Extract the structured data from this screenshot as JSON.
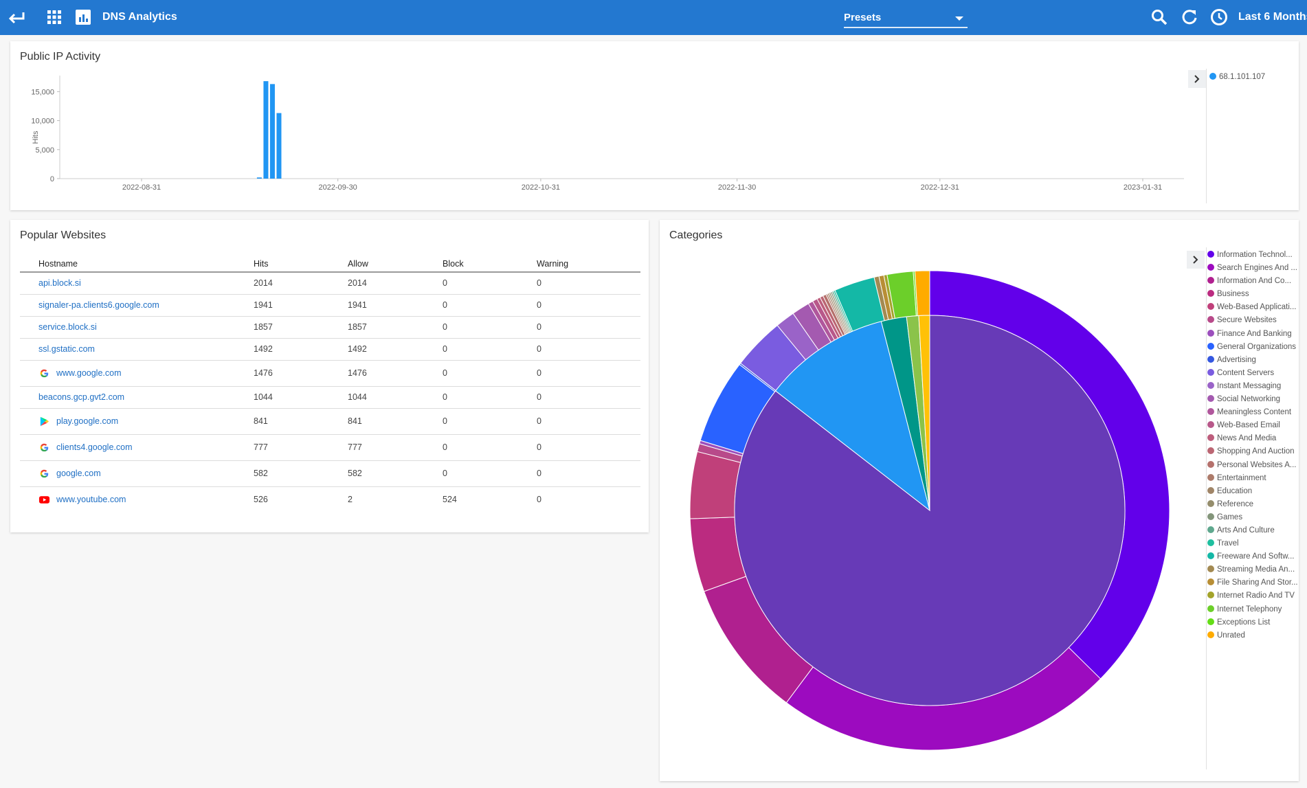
{
  "topbar": {
    "title": "DNS Analytics",
    "presets_label": "Presets",
    "range_label": "Last 6 Months"
  },
  "activity": {
    "title": "Public IP Activity",
    "legend": [
      {
        "label": "68.1.101.107",
        "color": "#2196f3"
      }
    ]
  },
  "popular": {
    "title": "Popular Websites",
    "columns": [
      "Hostname",
      "Hits",
      "Allow",
      "Block",
      "Warning"
    ],
    "rows": [
      {
        "host": "api.block.si",
        "hits": "2014",
        "allow": "2014",
        "block": "0",
        "warning": "0",
        "icon": "none"
      },
      {
        "host": "signaler-pa.clients6.google.com",
        "hits": "1941",
        "allow": "1941",
        "block": "0",
        "warning": "0",
        "icon": "none"
      },
      {
        "host": "service.block.si",
        "hits": "1857",
        "allow": "1857",
        "block": "0",
        "warning": "0",
        "icon": "none"
      },
      {
        "host": "ssl.gstatic.com",
        "hits": "1492",
        "allow": "1492",
        "block": "0",
        "warning": "0",
        "icon": "none"
      },
      {
        "host": "www.google.com",
        "hits": "1476",
        "allow": "1476",
        "block": "0",
        "warning": "0",
        "icon": "google-icon"
      },
      {
        "host": "beacons.gcp.gvt2.com",
        "hits": "1044",
        "allow": "1044",
        "block": "0",
        "warning": "0",
        "icon": "none"
      },
      {
        "host": "play.google.com",
        "hits": "841",
        "allow": "841",
        "block": "0",
        "warning": "0",
        "icon": "google-play-icon"
      },
      {
        "host": "clients4.google.com",
        "hits": "777",
        "allow": "777",
        "block": "0",
        "warning": "0",
        "icon": "google-icon"
      },
      {
        "host": "google.com",
        "hits": "582",
        "allow": "582",
        "block": "0",
        "warning": "0",
        "icon": "google-icon"
      },
      {
        "host": "www.youtube.com",
        "hits": "526",
        "allow": "2",
        "block": "524",
        "warning": "0",
        "icon": "youtube-icon"
      }
    ]
  },
  "categories": {
    "title": "Categories",
    "legend": [
      {
        "label": "Information Technol...",
        "color": "#6200ea"
      },
      {
        "label": "Search Engines And ...",
        "color": "#9c0bbf"
      },
      {
        "label": "Information And Co...",
        "color": "#b0208f"
      },
      {
        "label": "Business",
        "color": "#bb2b80"
      },
      {
        "label": "Web-Based Applicati...",
        "color": "#c0407a"
      },
      {
        "label": "Secure Websites",
        "color": "#b84a8a"
      },
      {
        "label": "Finance And Banking",
        "color": "#9c4fbd"
      },
      {
        "label": "General Organizations",
        "color": "#2962ff"
      },
      {
        "label": "Advertising",
        "color": "#3558e0"
      },
      {
        "label": "Content Servers",
        "color": "#7a5ce0"
      },
      {
        "label": "Instant Messaging",
        "color": "#9a63c8"
      },
      {
        "label": "Social Networking",
        "color": "#a45ab0"
      },
      {
        "label": "Meaningless Content",
        "color": "#b0579c"
      },
      {
        "label": "Web-Based Email",
        "color": "#b8588a"
      },
      {
        "label": "News And Media",
        "color": "#bd5d7c"
      },
      {
        "label": "Shopping And Auction",
        "color": "#bb6673"
      },
      {
        "label": "Personal Websites A...",
        "color": "#b5716c"
      },
      {
        "label": "Entertainment",
        "color": "#ad7b6a"
      },
      {
        "label": "Education",
        "color": "#a08567"
      },
      {
        "label": "Reference",
        "color": "#958d6c"
      },
      {
        "label": "Games",
        "color": "#83957a"
      },
      {
        "label": "Arts And Culture",
        "color": "#5fa88e"
      },
      {
        "label": "Travel",
        "color": "#1fbf9f"
      },
      {
        "label": "Freeware And Softw...",
        "color": "#14b8a6"
      },
      {
        "label": "Streaming Media An...",
        "color": "#a38a52"
      },
      {
        "label": "File Sharing And Stor...",
        "color": "#b88e35"
      },
      {
        "label": "Internet Radio And TV",
        "color": "#a3a32a"
      },
      {
        "label": "Internet Telephony",
        "color": "#6ccf2a"
      },
      {
        "label": "Exceptions List",
        "color": "#64dd17"
      },
      {
        "label": "Unrated",
        "color": "#ffab00"
      }
    ]
  },
  "chart_data": [
    {
      "type": "bar",
      "title": "Public IP Activity",
      "xlabel": "",
      "ylabel": "Hits",
      "ylim": [
        0,
        18000
      ],
      "x_tick_labels": [
        "2022-08-31",
        "2022-09-30",
        "2022-10-31",
        "2022-11-30",
        "2022-12-31",
        "2023-01-31"
      ],
      "y_tick_labels": [
        "0",
        "5,000",
        "10,000",
        "15,000"
      ],
      "legend_position": "right",
      "series": [
        {
          "name": "68.1.101.107",
          "x": [
            "2022-09-18",
            "2022-09-19",
            "2022-09-20",
            "2022-09-21"
          ],
          "values": [
            200,
            16800,
            16300,
            11300
          ]
        }
      ]
    },
    {
      "type": "pie",
      "title": "Categories",
      "legend_position": "right",
      "inner_ring": {
        "labels": [
          "Information Technology",
          "Search Engines",
          "Freeware",
          "Exceptions List",
          "Unrated"
        ],
        "values": [
          85.5,
          10.5,
          2.1,
          1.0,
          0.9
        ]
      },
      "outer_ring": {
        "labels": [
          "Information Technology",
          "Search Engines And Portals",
          "Information And Computer Security",
          "Business",
          "Web-Based Applications",
          "Secure Websites",
          "Finance And Banking",
          "General Organizations",
          "Advertising",
          "Content Servers",
          "Instant Messaging",
          "Social Networking",
          "Meaningless Content",
          "Web-Based Email",
          "News And Media",
          "Shopping And Auction",
          "Personal Websites And Blogs",
          "Entertainment",
          "Education",
          "Reference",
          "Games",
          "Arts And Culture",
          "Travel",
          "Freeware And Software Downloads",
          "Streaming Media And Download",
          "File Sharing And Storage",
          "Internet Radio And TV",
          "Internet Telephony",
          "Exceptions List",
          "Unrated"
        ],
        "values": [
          34.1,
          20.8,
          8.5,
          4.5,
          4.1,
          0.5,
          0.2,
          5.2,
          0.1,
          3.2,
          1.2,
          1.1,
          0.3,
          0.3,
          0.2,
          0.2,
          0.2,
          0.1,
          0.1,
          0.1,
          0.1,
          0.1,
          0.1,
          2.5,
          0.3,
          0.3,
          0.2,
          1.6,
          0.1,
          0.9
        ]
      }
    }
  ]
}
